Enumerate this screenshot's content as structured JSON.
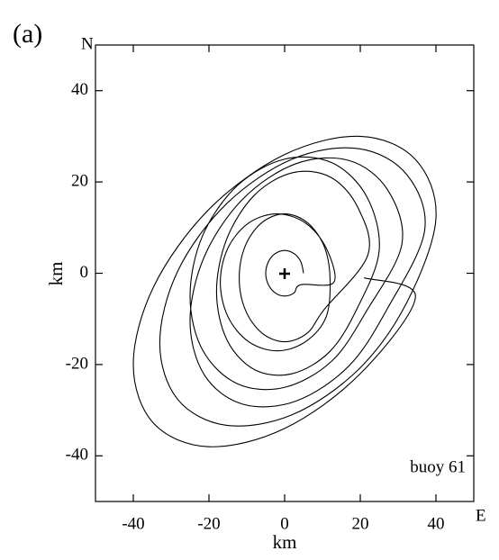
{
  "chart_data": {
    "type": "line",
    "panel_label": "(a)",
    "x_axis_end_label": "E",
    "y_axis_end_label": "N",
    "x_label": "km",
    "y_label": "km",
    "annotation": "buoy 61",
    "color": "#000000",
    "xlim": [
      -50,
      50
    ],
    "ylim": [
      -50,
      50
    ],
    "xticks": [
      -40,
      -20,
      0,
      20,
      40
    ],
    "yticks": [
      -40,
      -20,
      0,
      20,
      40
    ],
    "x": [
      5,
      4.3,
      2.5,
      0,
      -2.5,
      -4.3,
      -5,
      -4.3,
      -2.5,
      0,
      2.5,
      4.3,
      13,
      11,
      5.5,
      -2,
      -9.5,
      -15,
      -17,
      -15,
      -9.5,
      -2,
      5.5,
      11,
      12,
      10.4,
      6,
      0,
      -6,
      -10.4,
      -12,
      -10.4,
      -6,
      0,
      6,
      10.4,
      22,
      19.3,
      12,
      2,
      -8,
      -15.3,
      -18,
      -15.3,
      -8,
      2,
      12,
      19.3,
      25,
      21.7,
      12.5,
      0,
      -12.5,
      -21.7,
      -25,
      -21.7,
      -12.5,
      0,
      12.5,
      21.7,
      31,
      27.2,
      17,
      3,
      -11,
      -21.2,
      -25,
      -21.2,
      -11,
      3,
      17,
      27.2,
      37,
      32.3,
      19.5,
      2,
      -15.5,
      -28.3,
      -33,
      -28.3,
      -15.5,
      2,
      19.5,
      32.3,
      40,
      34.6,
      20,
      0,
      -20,
      -34.6,
      -40,
      -34.6,
      -20,
      0,
      20,
      34.6,
      21
    ],
    "y": [
      0,
      2.5,
      4.3,
      5,
      4.3,
      2.5,
      0,
      -2.5,
      -4.3,
      -5,
      -4.3,
      -2.5,
      -2,
      5.5,
      11,
      13,
      11,
      5.5,
      -2,
      -9.5,
      -15,
      -17,
      -15,
      -9.5,
      -1,
      6,
      11.1,
      13,
      11.1,
      6,
      -1,
      -8,
      -13.1,
      -15,
      -13.1,
      -8,
      4,
      14.5,
      21.1,
      22,
      17.1,
      7.5,
      -4,
      -14.5,
      -21.1,
      -22,
      -17.1,
      -7.5,
      5,
      16.8,
      24.2,
      25,
      19.2,
      8.2,
      -5,
      -16.8,
      -24.2,
      -25,
      -19.2,
      -8.2,
      6.4,
      18.3,
      24.7,
      24,
      16.3,
      3.7,
      -10.4,
      -22.3,
      -28.7,
      -28,
      -20.3,
      -7.7,
      9.3,
      21.6,
      27.3,
      25,
      15.1,
      0.4,
      -15.3,
      -27.6,
      -33.3,
      -31,
      -21.1,
      -6.4,
      12,
      24.9,
      30,
      26,
      14,
      -2.9,
      -20,
      -32.9,
      -38,
      -34,
      -22,
      -5.1,
      -1
    ]
  }
}
